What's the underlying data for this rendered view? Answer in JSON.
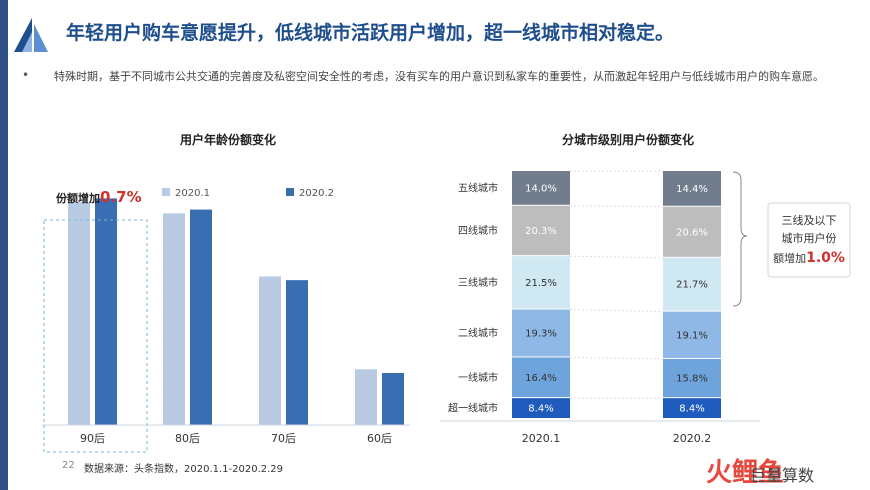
{
  "header": {
    "title": "年轻用户购车意愿提升，低线城市活跃用户增加，超一线城市相对稳定。",
    "bullet": "•",
    "description": "特殊时期，基于不同城市公共交通的完善度及私密空间安全性的考虑，没有买车的用户意识到私家车的重要性，从而激起年轻用户与低线城市用户的购车意愿。"
  },
  "footer": {
    "page_number": "22",
    "source": "数据来源：头条指数，2020.1.1-2020.2.29"
  },
  "brand": {
    "mark": "火鲤鱼",
    "name": "巨量算数"
  },
  "colors": {
    "title_blue": "#1f4e8c",
    "series_2020_1": "#b9cbe3",
    "series_2020_2": "#3a6eb3",
    "highlight_red": "#d0312d",
    "seg_top": "#717c8c",
    "seg_4": "#bdbdbd",
    "seg_3": "#cfe8f2",
    "seg_2": "#8fb8e6",
    "seg_1": "#6fa3dc",
    "seg_base": "#1f5bbd"
  },
  "chart_data": [
    {
      "type": "bar",
      "title": "用户年龄份额变化",
      "categories": [
        "90后",
        "80后",
        "70后",
        "60后"
      ],
      "series": [
        {
          "name": "2020.1",
          "values": [
            60,
            57,
            40,
            15
          ]
        },
        {
          "name": "2020.2",
          "values": [
            61,
            58,
            39,
            14
          ]
        }
      ],
      "ylim": [
        0,
        70
      ],
      "grid": false,
      "legend": "top",
      "annotation": {
        "prefix": "份额增加",
        "value": "0.7%",
        "category": "90后"
      }
    },
    {
      "type": "bar",
      "stacked": true,
      "title": "分城市级别用户份额变化",
      "categories": [
        "2020.1",
        "2020.2"
      ],
      "series": [
        {
          "name": "超一线城市",
          "values": [
            8.4,
            8.4
          ],
          "labels": [
            "8.4%",
            "8.4%"
          ]
        },
        {
          "name": "一线城市",
          "values": [
            16.4,
            15.8
          ],
          "labels": [
            "16.4%",
            "15.8%"
          ]
        },
        {
          "name": "二线城市",
          "values": [
            19.3,
            19.1
          ],
          "labels": [
            "19.3%",
            "19.1%"
          ]
        },
        {
          "name": "三线城市",
          "values": [
            21.5,
            21.7
          ],
          "labels": [
            "21.5%",
            "21.7%"
          ]
        },
        {
          "name": "四线城市",
          "values": [
            20.3,
            20.6
          ],
          "labels": [
            "20.3%",
            "20.6%"
          ]
        },
        {
          "name": "五线城市",
          "values": [
            14.0,
            14.4
          ],
          "labels": [
            "14.0%",
            "14.4%"
          ]
        }
      ],
      "ylim": [
        0,
        100
      ],
      "grid": false,
      "annotation": {
        "lines": [
          "三线及以下",
          "城市用户份"
        ],
        "prefix": "额增加",
        "value": "1.0%"
      }
    }
  ]
}
